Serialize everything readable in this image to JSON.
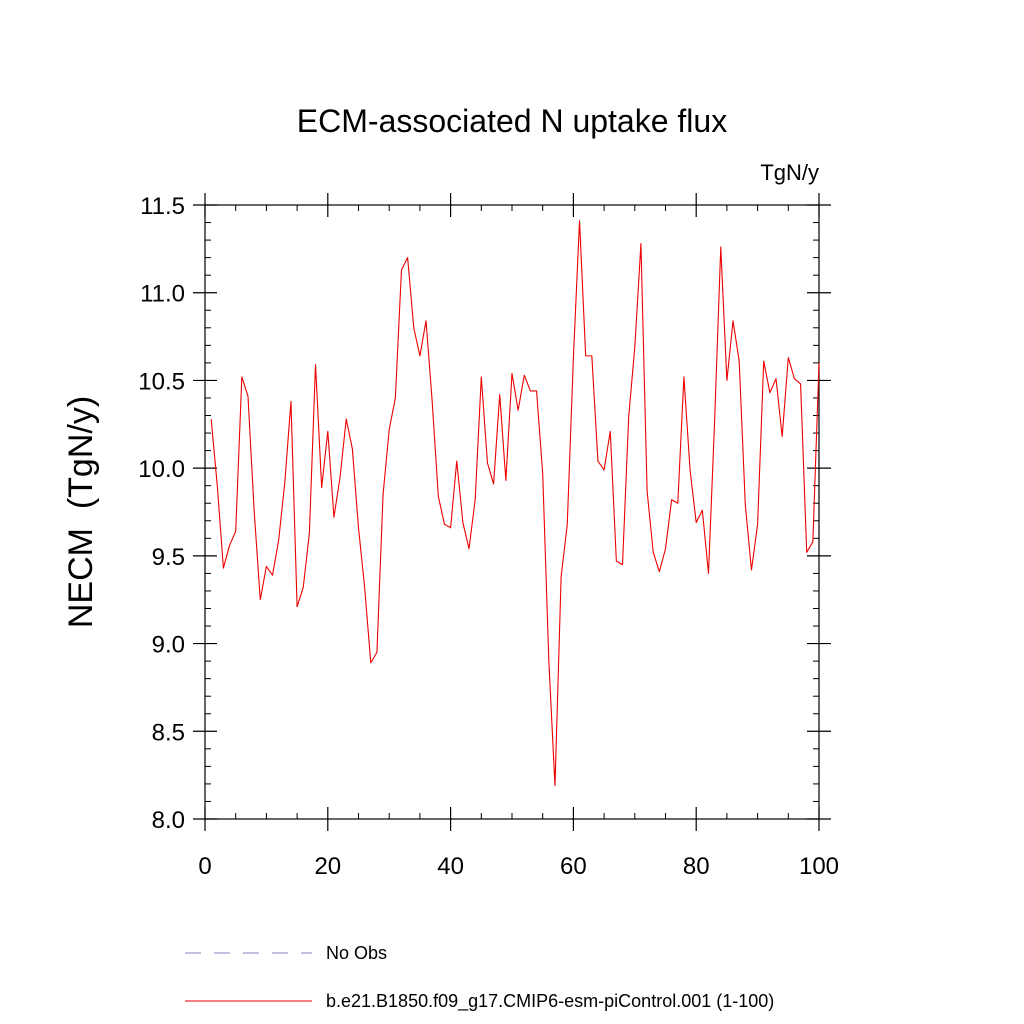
{
  "chart_data": {
    "type": "line",
    "title": "ECM-associated N uptake flux",
    "units_label": "TgN/y",
    "ylabel": "NECM  (TgN/y)",
    "xlabel": "",
    "xlim": [
      0,
      100
    ],
    "ylim": [
      8.0,
      11.5
    ],
    "x_ticks": [
      0,
      20,
      40,
      60,
      80,
      100
    ],
    "x_tick_labels": [
      "0",
      "20",
      "40",
      "60",
      "80",
      "100"
    ],
    "y_ticks": [
      8.0,
      8.5,
      9.0,
      9.5,
      10.0,
      10.5,
      11.0,
      11.5
    ],
    "y_tick_labels": [
      "8.0",
      "8.5",
      "9.0",
      "9.5",
      "10.0",
      "10.5",
      "11.0",
      "11.5"
    ],
    "grid": false,
    "legend_position": "bottom",
    "legend": [
      {
        "label": "No Obs",
        "color": "#8080c0",
        "style": "dashed"
      },
      {
        "label": "b.e21.B1850.f09_g17.CMIP6-esm-piControl.001 (1-100)",
        "color": "#ee0000",
        "style": "solid"
      }
    ],
    "series": [
      {
        "name": "b.e21.B1850.f09_g17.CMIP6-esm-piControl.001 (1-100)",
        "color": "#ee0000",
        "x": [
          1,
          2,
          3,
          4,
          5,
          6,
          7,
          8,
          9,
          10,
          11,
          12,
          13,
          14,
          15,
          16,
          17,
          18,
          19,
          20,
          21,
          22,
          23,
          24,
          25,
          26,
          27,
          28,
          29,
          30,
          31,
          32,
          33,
          34,
          35,
          36,
          37,
          38,
          39,
          40,
          41,
          42,
          43,
          44,
          45,
          46,
          47,
          48,
          49,
          50,
          51,
          52,
          53,
          54,
          55,
          56,
          57,
          58,
          59,
          60,
          61,
          62,
          63,
          64,
          65,
          66,
          67,
          68,
          69,
          70,
          71,
          72,
          73,
          74,
          75,
          76,
          77,
          78,
          79,
          80,
          81,
          82,
          83,
          84,
          85,
          86,
          87,
          88,
          89,
          90,
          91,
          92,
          93,
          94,
          95,
          96,
          97,
          98,
          99,
          100
        ],
        "values": [
          10.28,
          9.9,
          9.43,
          9.56,
          9.64,
          10.52,
          10.41,
          9.76,
          9.25,
          9.44,
          9.39,
          9.59,
          9.92,
          10.38,
          9.21,
          9.32,
          9.63,
          10.59,
          9.89,
          10.21,
          9.72,
          9.95,
          10.28,
          10.11,
          9.66,
          9.32,
          8.89,
          8.95,
          9.85,
          10.22,
          10.4,
          11.13,
          11.2,
          10.8,
          10.64,
          10.84,
          10.38,
          9.84,
          9.68,
          9.66,
          10.04,
          9.69,
          9.54,
          9.82,
          10.52,
          10.03,
          9.91,
          10.42,
          9.93,
          10.54,
          10.33,
          10.53,
          10.44,
          10.44,
          9.97,
          8.9,
          8.19,
          9.38,
          9.68,
          10.63,
          11.41,
          10.64,
          10.64,
          10.04,
          9.99,
          10.21,
          9.47,
          9.45,
          10.29,
          10.69,
          11.28,
          9.87,
          9.52,
          9.41,
          9.54,
          9.82,
          9.8,
          10.52,
          9.99,
          9.69,
          9.76,
          9.4,
          10.27,
          11.26,
          10.5,
          10.84,
          10.61,
          9.79,
          9.42,
          9.68,
          10.61,
          10.43,
          10.51,
          10.18,
          10.63,
          10.51,
          10.48,
          9.52,
          9.58,
          10.6
        ]
      }
    ]
  }
}
